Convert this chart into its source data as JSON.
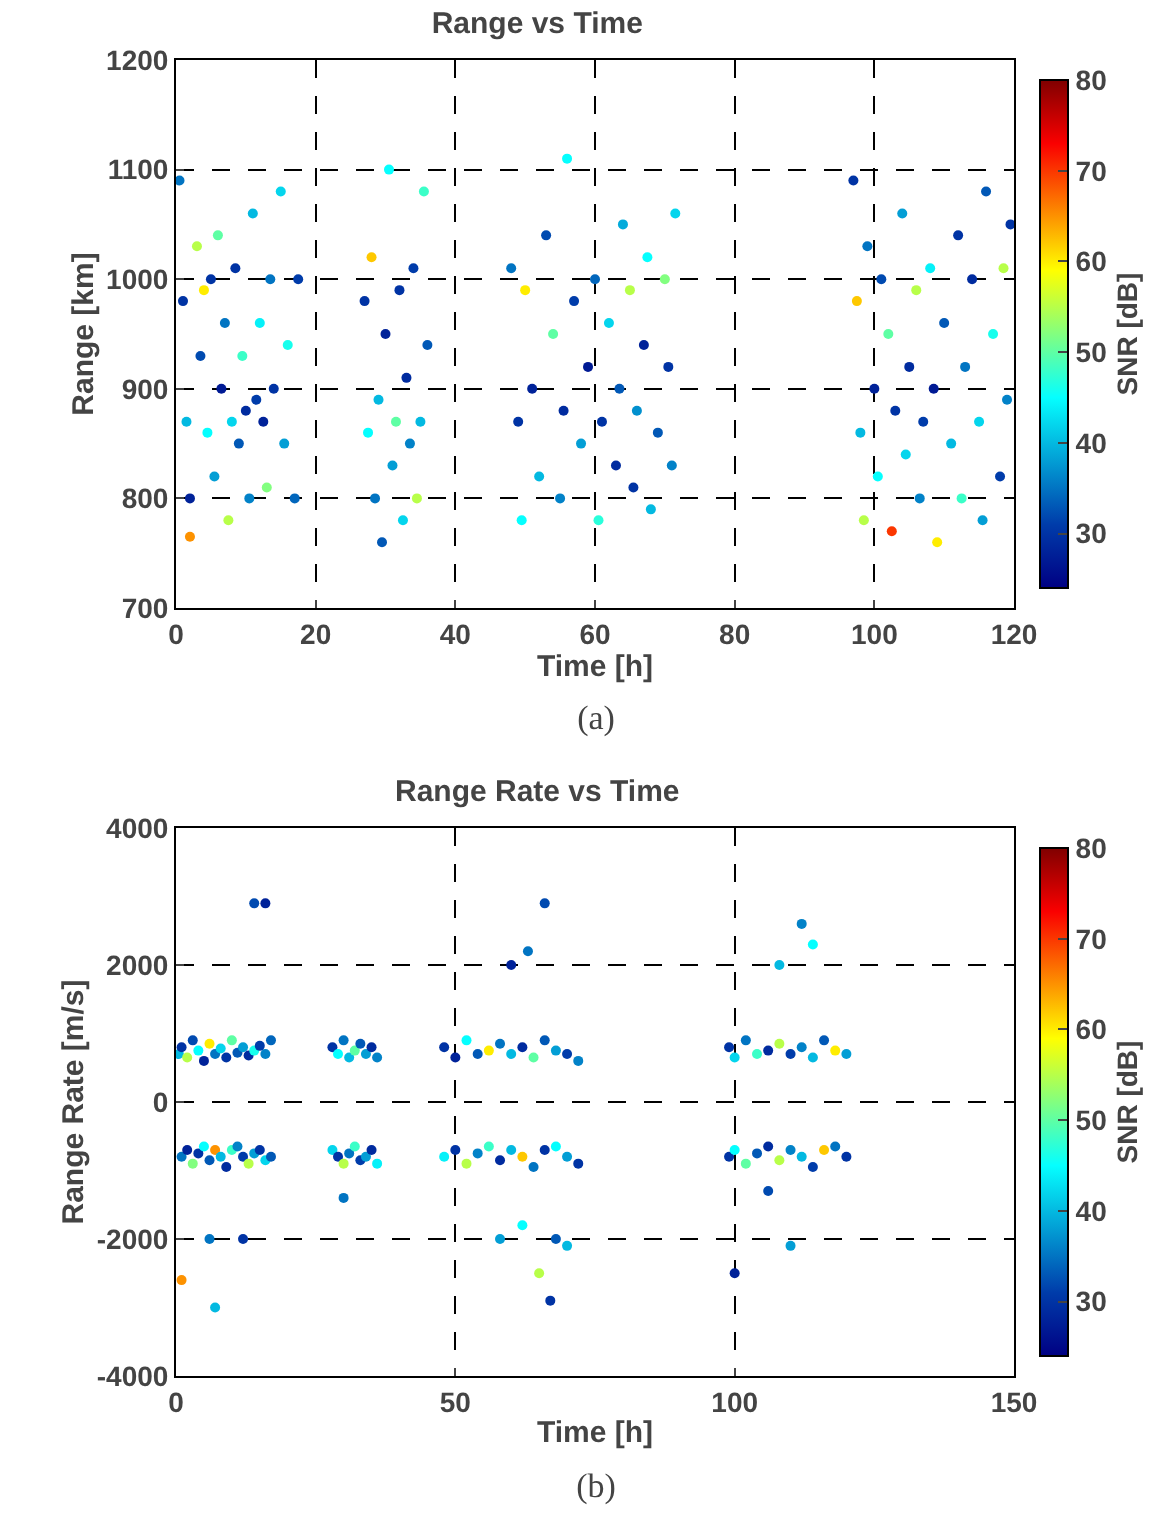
{
  "chart_data": [
    {
      "type": "scatter",
      "title": "Range vs Time",
      "xlabel": "Time [h]",
      "ylabel": "Range [km]",
      "clabel": "SNR [dB]",
      "xlim": [
        0,
        120
      ],
      "xticks": [
        0,
        20,
        40,
        60,
        80,
        100,
        120
      ],
      "ylim": [
        700,
        1200
      ],
      "yticks": [
        700,
        800,
        900,
        1000,
        1100,
        1200
      ],
      "clim": [
        24,
        80
      ],
      "cticks": [
        30,
        40,
        50,
        60,
        70,
        80
      ],
      "grid": true,
      "marker": "circle",
      "annotations": [
        "(a)"
      ],
      "x": [
        0.5,
        1,
        1.5,
        2,
        2,
        3,
        3.5,
        4,
        4.5,
        5,
        5.5,
        6,
        6.5,
        7,
        7.5,
        8,
        8.5,
        9,
        9.5,
        10,
        10.5,
        11,
        11.5,
        12,
        12.5,
        13,
        13.5,
        14,
        15,
        15.5,
        16,
        17,
        17.5,
        27,
        27.5,
        28,
        28.5,
        29,
        29.5,
        30,
        30.5,
        31,
        31.5,
        32,
        32.5,
        33,
        33.5,
        34,
        34.5,
        35,
        35.5,
        36,
        48,
        49,
        49.5,
        50,
        51,
        52,
        53,
        54,
        55,
        55.5,
        56,
        57,
        58,
        59,
        60,
        60.5,
        61,
        62,
        63,
        63.5,
        64,
        65,
        65.5,
        66,
        67,
        67.5,
        68,
        69,
        70,
        70.5,
        71,
        71.5,
        97,
        97.5,
        98,
        98.5,
        99,
        100,
        100.5,
        101,
        102,
        102.5,
        103,
        104,
        104.5,
        105,
        106,
        106.5,
        107,
        108,
        108.5,
        109,
        110,
        111,
        112,
        112.5,
        113,
        114,
        115,
        115.5,
        116,
        117,
        118,
        118.5,
        119,
        119.5
      ],
      "values": [
        1090,
        980,
        870,
        800,
        765,
        1030,
        930,
        990,
        860,
        1000,
        820,
        1040,
        900,
        960,
        780,
        870,
        1010,
        850,
        930,
        880,
        800,
        1060,
        890,
        960,
        870,
        810,
        1000,
        900,
        1080,
        850,
        940,
        800,
        1000,
        980,
        860,
        1020,
        800,
        890,
        760,
        950,
        1100,
        830,
        870,
        990,
        780,
        910,
        850,
        1010,
        800,
        870,
        1080,
        940,
        1010,
        870,
        780,
        990,
        900,
        820,
        1040,
        950,
        800,
        880,
        1110,
        980,
        850,
        920,
        1000,
        780,
        870,
        960,
        830,
        900,
        1050,
        990,
        810,
        880,
        940,
        1020,
        790,
        860,
        1000,
        920,
        830,
        1060,
        1090,
        980,
        860,
        780,
        1030,
        900,
        820,
        1000,
        950,
        770,
        880,
        1060,
        840,
        920,
        990,
        800,
        870,
        1010,
        900,
        760,
        960,
        850,
        1040,
        800,
        920,
        1000,
        870,
        780,
        1080,
        950,
        820,
        1010,
        890,
        1050
      ],
      "cvalues": [
        35,
        30,
        40,
        28,
        65,
        55,
        32,
        60,
        45,
        30,
        38,
        50,
        27,
        35,
        55,
        42,
        30,
        33,
        48,
        29,
        36,
        40,
        31,
        44,
        28,
        52,
        35,
        30,
        42,
        38,
        46,
        34,
        31,
        30,
        45,
        62,
        35,
        40,
        33,
        28,
        45,
        38,
        50,
        30,
        42,
        29,
        36,
        31,
        55,
        40,
        48,
        33,
        35,
        30,
        45,
        60,
        28,
        40,
        32,
        50,
        36,
        29,
        45,
        31,
        38,
        27,
        34,
        47,
        30,
        42,
        29,
        33,
        39,
        55,
        30,
        37,
        28,
        45,
        40,
        33,
        52,
        30,
        36,
        42,
        30,
        62,
        40,
        55,
        35,
        28,
        45,
        32,
        50,
        70,
        30,
        38,
        42,
        29,
        55,
        36,
        31,
        44,
        27,
        60,
        33,
        40,
        30,
        48,
        35,
        29,
        42,
        38,
        33,
        46,
        31,
        55,
        36,
        30
      ]
    },
    {
      "type": "scatter",
      "title": "Range Rate vs Time",
      "xlabel": "Time [h]",
      "ylabel": "Range Rate [m/s]",
      "clabel": "SNR [dB]",
      "xlim": [
        0,
        150
      ],
      "xticks": [
        0,
        50,
        100,
        150
      ],
      "ylim": [
        -4000,
        4000
      ],
      "yticks": [
        -4000,
        -2000,
        0,
        2000,
        4000
      ],
      "clim": [
        24,
        80
      ],
      "cticks": [
        30,
        40,
        50,
        60,
        70,
        80
      ],
      "grid": true,
      "marker": "circle",
      "annotations": [
        "(b)"
      ],
      "x": [
        0.5,
        1,
        2,
        3,
        4,
        5,
        6,
        7,
        8,
        9,
        10,
        11,
        12,
        13,
        14,
        15,
        16,
        17,
        1,
        2,
        3,
        4,
        5,
        6,
        7,
        8,
        9,
        10,
        11,
        12,
        13,
        14,
        15,
        16,
        17,
        1,
        6,
        7,
        12,
        14,
        16,
        28,
        29,
        30,
        31,
        32,
        33,
        34,
        35,
        36,
        28,
        29,
        30,
        31,
        32,
        33,
        34,
        35,
        36,
        30,
        48,
        50,
        52,
        54,
        56,
        58,
        60,
        62,
        64,
        66,
        68,
        70,
        72,
        48,
        50,
        52,
        54,
        56,
        58,
        60,
        62,
        64,
        66,
        68,
        70,
        72,
        60,
        63,
        66,
        67,
        70,
        58,
        62,
        65,
        68,
        99,
        100,
        102,
        104,
        106,
        108,
        110,
        112,
        114,
        116,
        118,
        120,
        99,
        100,
        102,
        104,
        106,
        108,
        110,
        112,
        114,
        116,
        118,
        120,
        100,
        108,
        112,
        114,
        106,
        110
      ],
      "values": [
        700,
        800,
        650,
        900,
        750,
        600,
        850,
        700,
        780,
        650,
        900,
        720,
        800,
        680,
        750,
        820,
        700,
        900,
        -800,
        -700,
        -900,
        -750,
        -650,
        -850,
        -700,
        -800,
        -950,
        -700,
        -650,
        -800,
        -900,
        -750,
        -700,
        -850,
        -800,
        -2600,
        -2000,
        -3000,
        -2000,
        2900,
        2900,
        800,
        700,
        900,
        650,
        750,
        850,
        700,
        800,
        650,
        -700,
        -800,
        -900,
        -750,
        -650,
        -850,
        -800,
        -700,
        -900,
        -1400,
        800,
        650,
        900,
        700,
        750,
        850,
        700,
        800,
        650,
        900,
        750,
        700,
        600,
        -800,
        -700,
        -900,
        -750,
        -650,
        -850,
        -700,
        -800,
        -950,
        -700,
        -650,
        -800,
        -900,
        2000,
        2200,
        2900,
        -2900,
        -2100,
        -2000,
        -1800,
        -2500,
        -2000,
        800,
        650,
        900,
        700,
        750,
        850,
        700,
        800,
        650,
        900,
        750,
        700,
        -800,
        -700,
        -900,
        -750,
        -650,
        -850,
        -700,
        -800,
        -950,
        -700,
        -650,
        -800,
        -2500,
        2000,
        2600,
        2300,
        -1300,
        -2100
      ],
      "cvalues": [
        40,
        30,
        55,
        32,
        45,
        28,
        60,
        35,
        42,
        30,
        50,
        33,
        38,
        29,
        46,
        31,
        36,
        34,
        35,
        28,
        52,
        30,
        45,
        33,
        65,
        40,
        29,
        48,
        36,
        31,
        55,
        38,
        30,
        42,
        33,
        65,
        35,
        40,
        30,
        32,
        28,
        30,
        45,
        35,
        40,
        50,
        33,
        38,
        29,
        36,
        42,
        30,
        55,
        35,
        48,
        31,
        38,
        29,
        44,
        35,
        30,
        28,
        45,
        33,
        60,
        35,
        40,
        29,
        50,
        33,
        38,
        31,
        36,
        44,
        30,
        55,
        36,
        48,
        29,
        40,
        62,
        35,
        30,
        45,
        38,
        30,
        28,
        35,
        32,
        30,
        40,
        38,
        45,
        55,
        33,
        30,
        42,
        35,
        48,
        29,
        55,
        31,
        36,
        40,
        33,
        60,
        38,
        30,
        45,
        50,
        33,
        29,
        55,
        36,
        40,
        31,
        62,
        35,
        30,
        28,
        40,
        36,
        45,
        32,
        38
      ]
    }
  ]
}
